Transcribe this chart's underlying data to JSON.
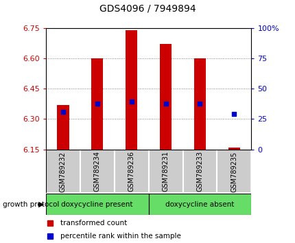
{
  "title": "GDS4096 / 7949894",
  "samples": [
    "GSM789232",
    "GSM789234",
    "GSM789236",
    "GSM789231",
    "GSM789233",
    "GSM789235"
  ],
  "red_bar_top": [
    6.37,
    6.6,
    6.74,
    6.67,
    6.6,
    6.16
  ],
  "red_bar_bottom": 6.15,
  "blue_y": [
    6.335,
    6.375,
    6.385,
    6.375,
    6.375,
    6.325
  ],
  "ylim_left": [
    6.15,
    6.75
  ],
  "ylim_right": [
    0,
    100
  ],
  "yticks_left": [
    6.15,
    6.3,
    6.45,
    6.6,
    6.75
  ],
  "yticks_right": [
    0,
    25,
    50,
    75,
    100
  ],
  "ytick_labels_right": [
    "0",
    "25",
    "50",
    "75",
    "100%"
  ],
  "group1_label": "doxycycline present",
  "group2_label": "doxycycline absent",
  "group1_indices": [
    0,
    1,
    2
  ],
  "group2_indices": [
    3,
    4,
    5
  ],
  "group_color": "#66dd66",
  "protocol_label": "growth protocol",
  "legend_red_label": "transformed count",
  "legend_blue_label": "percentile rank within the sample",
  "bar_color": "#cc0000",
  "blue_color": "#0000cc",
  "tick_color_left": "#cc0000",
  "tick_color_right": "#0000cc",
  "background_color": "#ffffff",
  "plot_bg_color": "#ffffff",
  "label_area_color": "#cccccc",
  "bar_width": 0.35,
  "blue_marker_size": 5,
  "grid_color": "#000000",
  "grid_alpha": 0.5,
  "grid_linestyle": ":"
}
